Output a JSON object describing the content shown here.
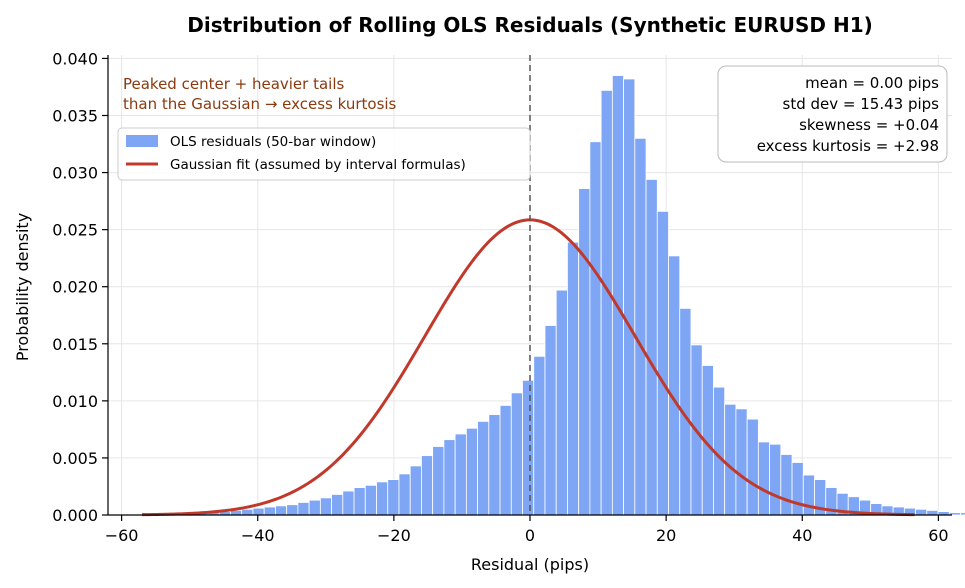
{
  "chart_data": {
    "type": "bar",
    "title": "Distribution of Rolling OLS Residuals (Synthetic EURUSD H1)",
    "xlabel": "Residual (pips)",
    "ylabel": "Probability density",
    "xlim": [
      -62,
      62
    ],
    "ylim": [
      0,
      0.0403
    ],
    "xticks": [
      -60,
      -40,
      -20,
      0,
      20,
      40,
      60
    ],
    "xtick_labels": [
      "−60",
      "−40",
      "−20",
      "0",
      "20",
      "40",
      "60"
    ],
    "yticks": [
      0,
      0.005,
      0.01,
      0.015,
      0.02,
      0.025,
      0.03,
      0.035,
      0.04
    ],
    "ytick_labels": [
      "0.000",
      "0.005",
      "0.010",
      "0.015",
      "0.020",
      "0.025",
      "0.030",
      "0.035",
      "0.040"
    ],
    "grid": true,
    "legend_position": "upper-left",
    "series": [
      {
        "name": "OLS residuals (50-bar window)",
        "kind": "histogram",
        "color": "#7ea6f4",
        "bin_width": 1.65,
        "bin_start": -57.2,
        "values": [
          5e-05,
          5e-05,
          0.0001,
          0.0001,
          0.0002,
          0.0002,
          0.0003,
          0.0003,
          0.0004,
          0.0005,
          0.0006,
          0.0007,
          0.0008,
          0.0009,
          0.0011,
          0.0013,
          0.0015,
          0.0018,
          0.0021,
          0.0024,
          0.0026,
          0.0029,
          0.0031,
          0.0036,
          0.0043,
          0.0052,
          0.006,
          0.0066,
          0.0071,
          0.0076,
          0.0082,
          0.0088,
          0.0096,
          0.0107,
          0.0118,
          0.0139,
          0.0166,
          0.0197,
          0.0239,
          0.0286,
          0.0327,
          0.0372,
          0.0385,
          0.0382,
          0.033,
          0.0294,
          0.0266,
          0.0227,
          0.0181,
          0.0149,
          0.0131,
          0.0112,
          0.0097,
          0.0093,
          0.0084,
          0.0064,
          0.0062,
          0.0053,
          0.0046,
          0.0035,
          0.0031,
          0.0024,
          0.0019,
          0.0016,
          0.0013,
          0.001,
          0.0008,
          0.0007,
          0.0006,
          0.0005,
          0.0004,
          0.0003,
          0.0002,
          0.0002,
          0.0001,
          0.0001,
          5e-05,
          5e-05
        ]
      },
      {
        "name": "Gaussian fit (assumed by interval formulas)",
        "kind": "line",
        "color": "#c0392b",
        "mean": 0.0,
        "std": 15.43,
        "x_range": [
          -57,
          56.5
        ]
      }
    ],
    "vertical_line": {
      "x": 0,
      "style": "dashed",
      "color": "#555555"
    },
    "annotations": {
      "note_line1": "Peaked center + heavier tails",
      "note_line2": "than the Gaussian → excess kurtosis",
      "note_color": "#8b3a0f",
      "stats": [
        "mean = 0.00 pips",
        "std dev = 15.43 pips",
        "skewness = +0.04",
        "excess kurtosis = +2.98"
      ]
    }
  }
}
